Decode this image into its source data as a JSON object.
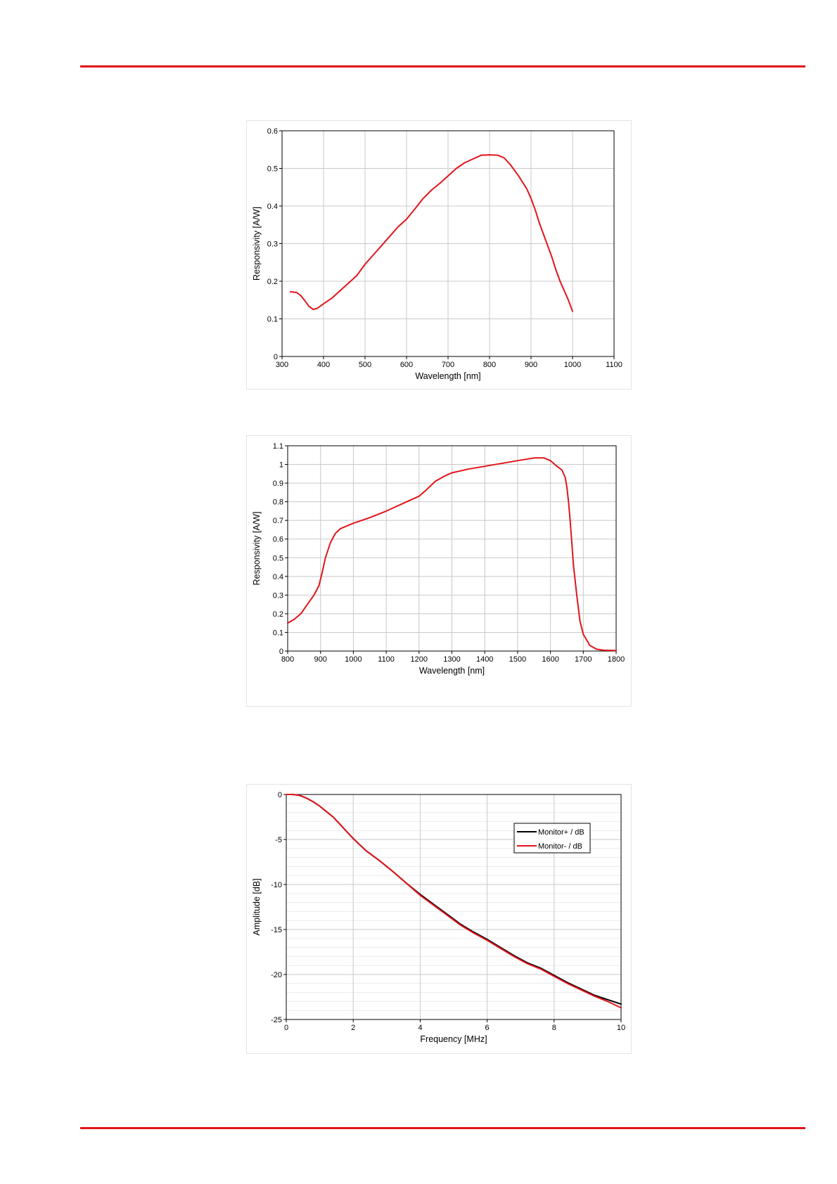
{
  "page": {
    "rule_color": "#e2141a"
  },
  "chart_data": [
    {
      "type": "line",
      "title": "",
      "xlabel": "Wavelength  [nm]",
      "ylabel": "Responsivity  [A/W]",
      "xlim": [
        300,
        1100
      ],
      "ylim": [
        0,
        0.6
      ],
      "xticks": [
        300,
        400,
        500,
        600,
        700,
        800,
        900,
        1000,
        1100
      ],
      "yticks": [
        0,
        0.1,
        0.2,
        0.3,
        0.4,
        0.5,
        0.6
      ],
      "xtick_labels": [
        "300",
        "400",
        "500",
        "600",
        "700",
        "800",
        "900",
        "1000",
        "1100"
      ],
      "ytick_labels": [
        "0",
        "0.1",
        "0.2",
        "0.3",
        "0.4",
        "0.5",
        "0.6"
      ],
      "grid": true,
      "legend": "none",
      "series": [
        {
          "color": "#e2141a",
          "x": [
            320,
            335,
            345,
            355,
            365,
            375,
            385,
            400,
            420,
            440,
            460,
            480,
            500,
            520,
            540,
            560,
            580,
            600,
            620,
            640,
            660,
            680,
            700,
            720,
            740,
            760,
            780,
            800,
            820,
            835,
            850,
            870,
            890,
            900,
            910,
            920,
            930,
            940,
            950,
            960,
            970,
            980,
            990,
            1000
          ],
          "y": [
            0.172,
            0.17,
            0.162,
            0.148,
            0.133,
            0.125,
            0.128,
            0.14,
            0.155,
            0.175,
            0.195,
            0.215,
            0.245,
            0.27,
            0.295,
            0.32,
            0.345,
            0.365,
            0.392,
            0.42,
            0.442,
            0.46,
            0.48,
            0.5,
            0.515,
            0.525,
            0.535,
            0.536,
            0.535,
            0.528,
            0.51,
            0.48,
            0.445,
            0.42,
            0.39,
            0.355,
            0.325,
            0.295,
            0.265,
            0.23,
            0.2,
            0.175,
            0.15,
            0.12
          ]
        }
      ]
    },
    {
      "type": "line",
      "title": "",
      "xlabel": "Wavelength  [nm]",
      "ylabel": "Responsivity  [A/W]",
      "xlim": [
        800,
        1800
      ],
      "ylim": [
        0,
        1.1
      ],
      "xticks": [
        800,
        900,
        1000,
        1100,
        1200,
        1300,
        1400,
        1500,
        1600,
        1700,
        1800
      ],
      "yticks": [
        0,
        0.1,
        0.2,
        0.3,
        0.4,
        0.5,
        0.6,
        0.7,
        0.8,
        0.9,
        1,
        1.1
      ],
      "xtick_labels": [
        "800",
        "900",
        "1000",
        "1100",
        "1200",
        "1300",
        "1400",
        "1500",
        "1600",
        "1700",
        "1800"
      ],
      "ytick_labels": [
        "0",
        "0.1",
        "0.2",
        "0.3",
        "0.4",
        "0.5",
        "0.6",
        "0.7",
        "0.8",
        "0.9",
        "1",
        "1.1"
      ],
      "grid": true,
      "legend": "none",
      "series": [
        {
          "color": "#e2141a",
          "x": [
            800,
            820,
            840,
            860,
            880,
            895,
            905,
            915,
            930,
            945,
            960,
            980,
            1000,
            1050,
            1100,
            1150,
            1200,
            1220,
            1250,
            1280,
            1300,
            1350,
            1400,
            1450,
            1500,
            1550,
            1580,
            1600,
            1620,
            1635,
            1645,
            1650,
            1655,
            1660,
            1665,
            1670,
            1680,
            1690,
            1700,
            1720,
            1740,
            1760,
            1800
          ],
          "y": [
            0.15,
            0.17,
            0.2,
            0.25,
            0.3,
            0.35,
            0.42,
            0.5,
            0.58,
            0.63,
            0.655,
            0.67,
            0.685,
            0.715,
            0.75,
            0.79,
            0.83,
            0.86,
            0.91,
            0.94,
            0.955,
            0.975,
            0.99,
            1.005,
            1.02,
            1.035,
            1.035,
            1.02,
            0.99,
            0.97,
            0.93,
            0.88,
            0.8,
            0.7,
            0.58,
            0.46,
            0.3,
            0.16,
            0.09,
            0.03,
            0.01,
            0.005,
            0.003
          ]
        }
      ]
    },
    {
      "type": "line",
      "title": "",
      "xlabel": "Frequency  [MHz]",
      "ylabel": "Amplitude  [dB]",
      "xlim": [
        0,
        10
      ],
      "ylim": [
        -25,
        0
      ],
      "xticks": [
        0,
        2,
        4,
        6,
        8,
        10
      ],
      "yticks": [
        0,
        -5,
        -10,
        -15,
        -20,
        -25
      ],
      "xtick_labels": [
        "0",
        "2",
        "4",
        "6",
        "8",
        "10"
      ],
      "ytick_labels": [
        "0",
        "-5",
        "-10",
        "-15",
        "-20",
        "-25"
      ],
      "grid": true,
      "legend": "top-right",
      "series": [
        {
          "name": "Monitor+ / dB",
          "color": "#000000",
          "x": [
            0,
            0.2,
            0.4,
            0.6,
            0.8,
            1.0,
            1.2,
            1.4,
            1.6,
            1.8,
            2.0,
            2.2,
            2.4,
            2.8,
            3.2,
            3.6,
            4.0,
            4.4,
            4.8,
            5.2,
            5.6,
            6.0,
            6.4,
            6.8,
            7.2,
            7.6,
            8.0,
            8.4,
            8.8,
            9.2,
            9.6,
            10.0
          ],
          "y": [
            0,
            0,
            -0.1,
            -0.4,
            -0.8,
            -1.3,
            -1.9,
            -2.5,
            -3.3,
            -4.1,
            -4.9,
            -5.6,
            -6.3,
            -7.4,
            -8.6,
            -9.9,
            -11.1,
            -12.2,
            -13.3,
            -14.4,
            -15.3,
            -16.1,
            -17.0,
            -17.9,
            -18.7,
            -19.3,
            -20.1,
            -20.9,
            -21.6,
            -22.3,
            -22.8,
            -23.3
          ]
        },
        {
          "name": "Monitor- / dB",
          "color": "#e2141a",
          "x": [
            0,
            0.2,
            0.4,
            0.6,
            0.8,
            1.0,
            1.2,
            1.4,
            1.6,
            1.8,
            2.0,
            2.2,
            2.4,
            2.8,
            3.2,
            3.6,
            4.0,
            4.4,
            4.8,
            5.2,
            5.6,
            6.0,
            6.4,
            6.8,
            7.2,
            7.6,
            8.0,
            8.4,
            8.8,
            9.2,
            9.6,
            10.0
          ],
          "y": [
            0,
            0,
            -0.1,
            -0.4,
            -0.8,
            -1.3,
            -1.9,
            -2.5,
            -3.3,
            -4.1,
            -4.9,
            -5.6,
            -6.3,
            -7.4,
            -8.6,
            -9.9,
            -11.2,
            -12.3,
            -13.4,
            -14.5,
            -15.4,
            -16.2,
            -17.1,
            -18.0,
            -18.8,
            -19.4,
            -20.2,
            -21.0,
            -21.7,
            -22.4,
            -23.0,
            -23.7
          ]
        }
      ]
    }
  ]
}
